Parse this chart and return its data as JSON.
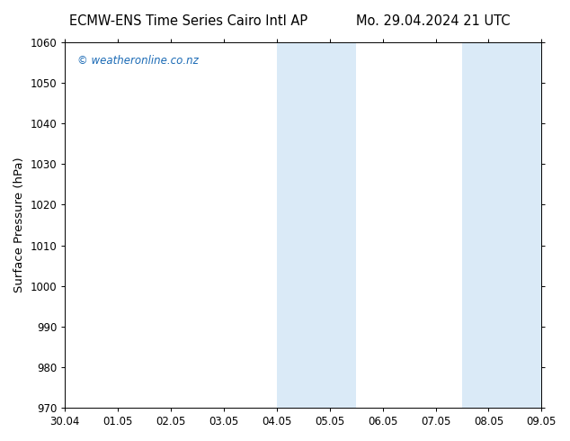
{
  "title_left": "ECMW-ENS Time Series Cairo Intl AP",
  "title_right": "Mo. 29.04.2024 21 UTC",
  "ylabel": "Surface Pressure (hPa)",
  "xlabel": "",
  "ylim": [
    970,
    1060
  ],
  "yticks": [
    970,
    980,
    990,
    1000,
    1010,
    1020,
    1030,
    1040,
    1050,
    1060
  ],
  "xlim_start": 0,
  "xlim_end": 9,
  "xtick_labels": [
    "30.04",
    "01.05",
    "02.05",
    "03.05",
    "04.05",
    "05.05",
    "06.05",
    "07.05",
    "08.05",
    "09.05"
  ],
  "xtick_positions": [
    0,
    1,
    2,
    3,
    4,
    5,
    6,
    7,
    8,
    9
  ],
  "shaded_regions": [
    {
      "xmin": 4.0,
      "xmax": 5.5
    },
    {
      "xmin": 7.5,
      "xmax": 9.0
    }
  ],
  "shaded_color": "#daeaf7",
  "background_color": "#ffffff",
  "plot_bg_color": "#ffffff",
  "watermark_text": "© weatheronline.co.nz",
  "watermark_color": "#1a6ab5",
  "watermark_fontsize": 8.5,
  "title_fontsize": 10.5,
  "ylabel_fontsize": 9.5,
  "tick_fontsize": 8.5
}
